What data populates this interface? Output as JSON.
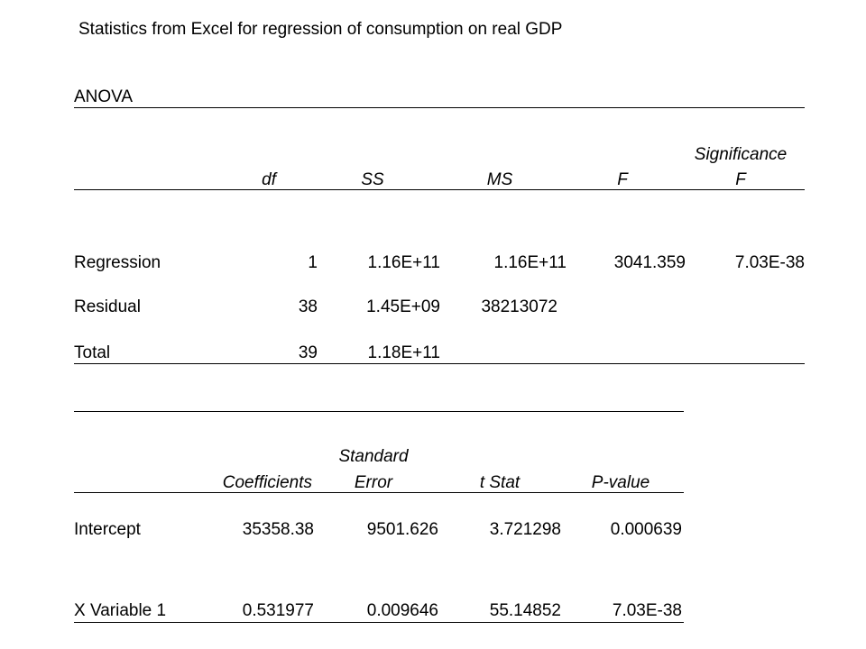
{
  "title": "Statistics from Excel for regression of consumption on real GDP",
  "anova": {
    "label": "ANOVA",
    "headers": {
      "df": "df",
      "ss": "SS",
      "ms": "MS",
      "f": "F",
      "sig_line1": "Significance",
      "sig_line2": "F"
    },
    "rows": [
      {
        "label": "Regression",
        "df": "1",
        "ss": "1.16E+11",
        "ms": "1.16E+11",
        "f": "3041.359",
        "sig": "7.03E-38"
      },
      {
        "label": "Residual",
        "df": "38",
        "ss": "1.45E+09",
        "ms": "38213072",
        "f": "",
        "sig": ""
      },
      {
        "label": "Total",
        "df": "39",
        "ss": "1.18E+11",
        "ms": "",
        "f": "",
        "sig": ""
      }
    ]
  },
  "coefficients": {
    "headers": {
      "coef": "Coefficients",
      "se_line1": "Standard",
      "se_line2": "Error",
      "tstat": "t Stat",
      "pvalue": "P-value"
    },
    "rows": [
      {
        "label": "Intercept",
        "coef": "35358.38",
        "se": "9501.626",
        "tstat": "3.721298",
        "pvalue": "0.000639"
      },
      {
        "label": "X Variable 1",
        "coef": "0.531977",
        "se": "0.009646",
        "tstat": "55.14852",
        "pvalue": "7.03E-38"
      }
    ]
  }
}
